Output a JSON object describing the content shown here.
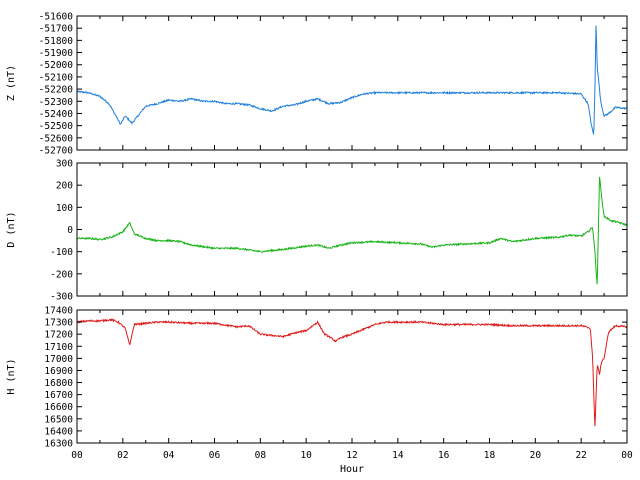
{
  "chart_data": [
    {
      "type": "line",
      "panel": "Z",
      "ylabel": "Z (nT)",
      "ylim": [
        -52700,
        -51600
      ],
      "yticks": [
        -51600,
        -51700,
        -51800,
        -51900,
        -52000,
        -52100,
        -52200,
        -52300,
        -52400,
        -52500,
        -52600,
        -52700
      ],
      "color": "#1f7fdc",
      "x": [
        0,
        0.5,
        1.0,
        1.4,
        1.7,
        1.9,
        2.1,
        2.4,
        3.0,
        3.5,
        4.0,
        4.5,
        5.0,
        5.5,
        6.0,
        6.5,
        7.0,
        7.5,
        8.0,
        8.5,
        9.0,
        9.5,
        10.0,
        10.5,
        11.0,
        11.5,
        12.0,
        12.5,
        13.0,
        14.0,
        15.0,
        16.0,
        17.0,
        18.0,
        19.0,
        20.0,
        21.0,
        22.0,
        22.3,
        22.45,
        22.55,
        22.6,
        22.65,
        22.7,
        22.75,
        22.85,
        23.0,
        23.2,
        23.5,
        24.0
      ],
      "y": [
        -52220,
        -52230,
        -52260,
        -52320,
        -52420,
        -52490,
        -52420,
        -52480,
        -52340,
        -52320,
        -52290,
        -52300,
        -52280,
        -52300,
        -52300,
        -52320,
        -52320,
        -52330,
        -52360,
        -52380,
        -52340,
        -52330,
        -52300,
        -52280,
        -52320,
        -52310,
        -52270,
        -52240,
        -52230,
        -52230,
        -52230,
        -52230,
        -52230,
        -52230,
        -52230,
        -52230,
        -52230,
        -52240,
        -52320,
        -52500,
        -52580,
        -52200,
        -51650,
        -52020,
        -52100,
        -52300,
        -52420,
        -52400,
        -52350,
        -52360
      ]
    },
    {
      "type": "line",
      "panel": "D",
      "ylabel": "D (nT)",
      "ylim": [
        -300,
        300
      ],
      "yticks": [
        300,
        200,
        100,
        0,
        -100,
        -200,
        -300
      ],
      "color": "#17b317",
      "x": [
        0,
        0.5,
        1.0,
        1.5,
        2.0,
        2.3,
        2.5,
        3.0,
        3.5,
        4.0,
        4.5,
        5.0,
        6.0,
        7.0,
        8.0,
        8.5,
        9.0,
        10.0,
        10.5,
        11.0,
        11.5,
        12.0,
        13.0,
        14.0,
        15.0,
        15.5,
        16.0,
        17.0,
        18.0,
        18.5,
        19.0,
        20.0,
        21.0,
        21.5,
        22.0,
        22.3,
        22.5,
        22.6,
        22.7,
        22.8,
        22.9,
        23.0,
        23.3,
        23.7,
        24.0
      ],
      "y": [
        -40,
        -40,
        -45,
        -35,
        -10,
        30,
        -20,
        -40,
        -50,
        -50,
        -55,
        -70,
        -85,
        -85,
        -100,
        -95,
        -90,
        -75,
        -70,
        -85,
        -70,
        -60,
        -55,
        -60,
        -65,
        -80,
        -70,
        -65,
        -60,
        -40,
        -55,
        -40,
        -35,
        -25,
        -30,
        -10,
        10,
        -100,
        -260,
        240,
        140,
        60,
        40,
        30,
        20
      ]
    },
    {
      "type": "line",
      "panel": "H",
      "ylabel": "H (nT)",
      "xlabel": "Hour",
      "xlim": [
        0,
        24
      ],
      "xticks": [
        "00",
        "02",
        "04",
        "06",
        "08",
        "10",
        "12",
        "14",
        "16",
        "18",
        "20",
        "22",
        "00"
      ],
      "ylim": [
        16300,
        17400
      ],
      "yticks": [
        17400,
        17300,
        17200,
        17100,
        17000,
        16900,
        16800,
        16700,
        16600,
        16500,
        16400,
        16300
      ],
      "color": "#e01a1a",
      "x": [
        0,
        0.5,
        1.0,
        1.5,
        1.8,
        2.1,
        2.3,
        2.5,
        3.0,
        3.5,
        4.0,
        5.0,
        6.0,
        7.0,
        7.5,
        8.0,
        8.5,
        9.0,
        9.5,
        10.0,
        10.5,
        10.8,
        11.0,
        11.3,
        11.5,
        12.0,
        12.5,
        13.0,
        13.5,
        14.0,
        15.0,
        16.0,
        17.0,
        18.0,
        19.0,
        20.0,
        21.0,
        22.0,
        22.4,
        22.5,
        22.6,
        22.7,
        22.8,
        22.9,
        23.0,
        23.2,
        23.5,
        24.0
      ],
      "y": [
        17300,
        17310,
        17310,
        17320,
        17300,
        17250,
        17110,
        17280,
        17290,
        17300,
        17300,
        17290,
        17290,
        17260,
        17270,
        17200,
        17190,
        17180,
        17210,
        17230,
        17300,
        17200,
        17180,
        17140,
        17170,
        17200,
        17240,
        17280,
        17300,
        17300,
        17300,
        17280,
        17280,
        17280,
        17270,
        17270,
        17270,
        17270,
        17250,
        17000,
        16420,
        16950,
        16870,
        16980,
        17000,
        17220,
        17270,
        17260
      ]
    }
  ]
}
